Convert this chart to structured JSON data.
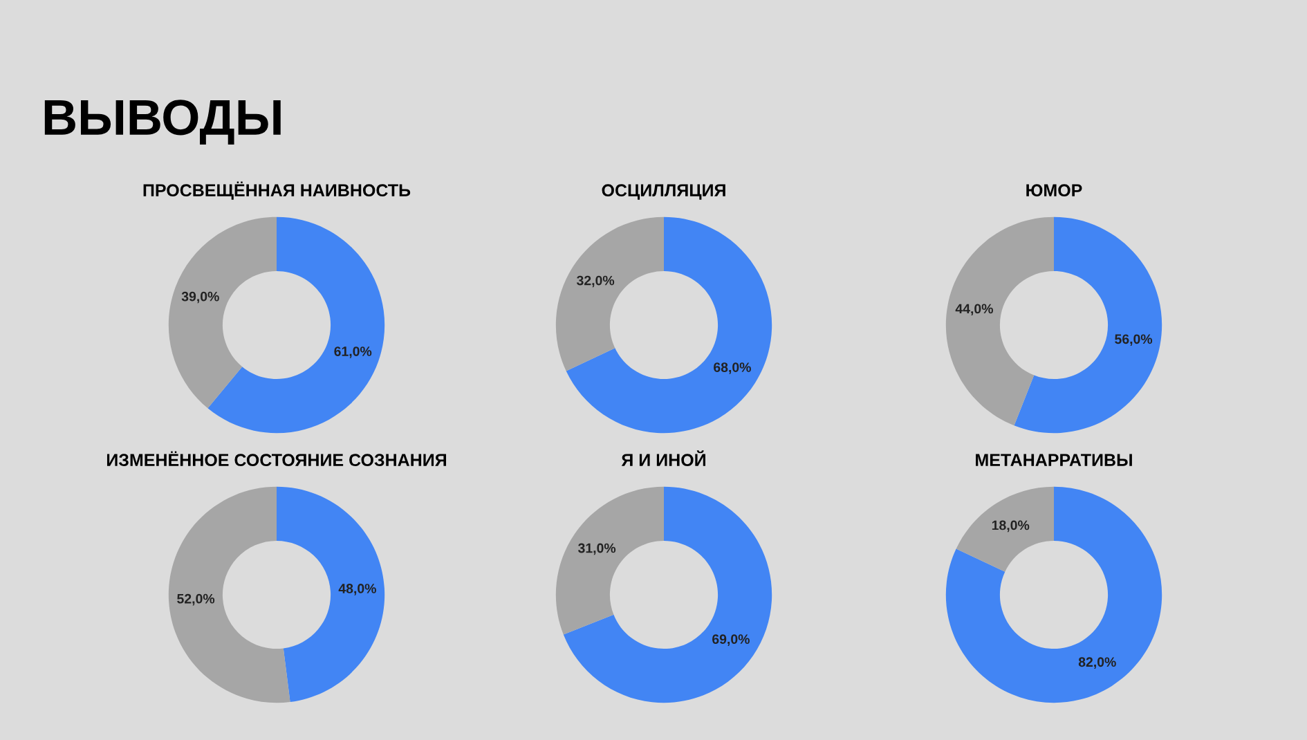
{
  "chart_data": [
    {
      "type": "donut",
      "title": "ПРОСВЕЩЁННАЯ НАИВНОСТЬ",
      "annotations": [
        "ВЫВОДЫ"
      ],
      "categories": [
        null,
        null
      ],
      "values": [
        61,
        39
      ],
      "colors": [
        "#4285f4",
        "#a6a6a6"
      ],
      "value_labels": [
        "61,0%",
        "39,0%"
      ]
    },
    {
      "type": "donut",
      "title": "ОСЦИЛЛЯЦИЯ",
      "categories": [
        null,
        null
      ],
      "values": [
        68,
        32
      ],
      "colors": [
        "#4285f4",
        "#a6a6a6"
      ],
      "value_labels": [
        "68,0%",
        "32,0%"
      ]
    },
    {
      "type": "donut",
      "title": "ЮМОР",
      "categories": [
        null,
        null
      ],
      "values": [
        56,
        44
      ],
      "colors": [
        "#4285f4",
        "#a6a6a6"
      ],
      "value_labels": [
        "56,0%",
        "44,0%"
      ]
    },
    {
      "type": "donut",
      "title": "ИЗМЕНЁННОЕ СОСТОЯНИЕ СОЗНАНИЯ",
      "categories": [
        null,
        null
      ],
      "values": [
        48,
        52
      ],
      "colors": [
        "#4285f4",
        "#a6a6a6"
      ],
      "value_labels": [
        "48,0%",
        "52,0%"
      ]
    },
    {
      "type": "donut",
      "title": "Я И ИНОЙ",
      "categories": [
        null,
        null
      ],
      "values": [
        69,
        31
      ],
      "colors": [
        "#4285f4",
        "#a6a6a6"
      ],
      "value_labels": [
        "69,0%",
        "31,0%"
      ]
    },
    {
      "type": "donut",
      "title": "МЕТАНАРРАТИВЫ",
      "categories": [
        null,
        null
      ],
      "values": [
        82,
        18
      ],
      "colors": [
        "#4285f4",
        "#a6a6a6"
      ],
      "value_labels": [
        "82,0%",
        "18,0%"
      ]
    }
  ]
}
